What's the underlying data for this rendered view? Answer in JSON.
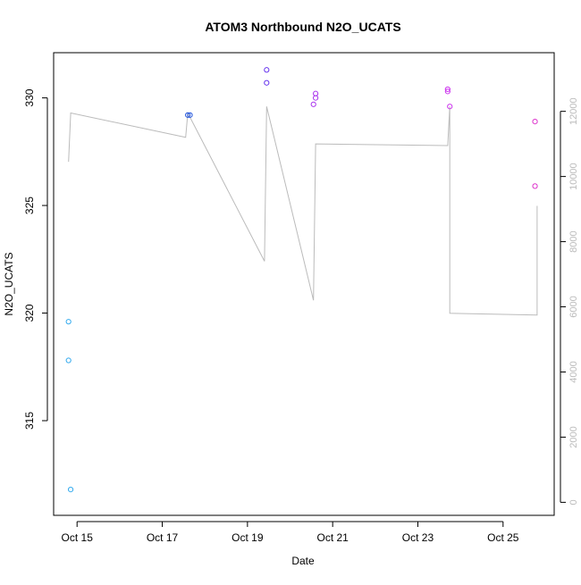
{
  "chart_data": {
    "type": "scatter",
    "title": "ATOM3 Northbound N2O_UCATS",
    "xlabel": "Date",
    "ylabel": "N2O_UCATS",
    "x_ticks": [
      "Oct 15",
      "Oct 17",
      "Oct 19",
      "Oct 21",
      "Oct 23",
      "Oct 25"
    ],
    "x_tick_values": [
      15,
      17,
      19,
      21,
      23,
      25
    ],
    "xlim": [
      14.45,
      26.2
    ],
    "y_ticks": [
      "315",
      "320",
      "325",
      "330"
    ],
    "y_tick_values": [
      315,
      320,
      325,
      330
    ],
    "ylim": [
      310.6,
      332.1
    ],
    "y2_ticks": [
      "0",
      "2000",
      "4000",
      "6000",
      "8000",
      "10000",
      "12000"
    ],
    "y2_tick_values": [
      0,
      2000,
      4000,
      6000,
      8000,
      10000,
      12000
    ],
    "y2lim": [
      -400,
      13800
    ],
    "grid": false,
    "series": [
      {
        "values": [
          {
            "x": 14.8,
            "y": 319.6,
            "color": "#33aaee"
          },
          {
            "x": 14.8,
            "y": 317.8,
            "color": "#33aaee"
          },
          {
            "x": 14.85,
            "y": 311.8,
            "color": "#33aaee"
          },
          {
            "x": 17.6,
            "y": 329.2,
            "color": "#2255dd"
          },
          {
            "x": 17.65,
            "y": 329.2,
            "color": "#2255dd"
          },
          {
            "x": 19.45,
            "y": 331.3,
            "color": "#6633ee"
          },
          {
            "x": 19.45,
            "y": 330.7,
            "color": "#6633ee"
          },
          {
            "x": 20.6,
            "y": 330.2,
            "color": "#aa33ee"
          },
          {
            "x": 20.6,
            "y": 330.0,
            "color": "#aa33ee"
          },
          {
            "x": 20.55,
            "y": 329.7,
            "color": "#aa33ee"
          },
          {
            "x": 23.7,
            "y": 330.4,
            "color": "#cc33ee"
          },
          {
            "x": 23.7,
            "y": 330.3,
            "color": "#cc33ee"
          },
          {
            "x": 23.75,
            "y": 329.6,
            "color": "#cc33ee"
          },
          {
            "x": 25.75,
            "y": 328.9,
            "color": "#dd33cc"
          },
          {
            "x": 25.75,
            "y": 325.9,
            "color": "#dd33cc"
          }
        ]
      },
      {
        "axis": "right",
        "color": "#bbbbbb",
        "values": [
          {
            "x": 14.8,
            "y": 10450
          },
          {
            "x": 14.85,
            "y": 11950
          },
          {
            "x": 17.55,
            "y": 11200
          },
          {
            "x": 17.6,
            "y": 11950
          },
          {
            "x": 19.4,
            "y": 7400
          },
          {
            "x": 19.45,
            "y": 12150
          },
          {
            "x": 20.55,
            "y": 6200
          },
          {
            "x": 20.6,
            "y": 11000
          },
          {
            "x": 23.7,
            "y": 10950
          },
          {
            "x": 23.75,
            "y": 12150
          },
          {
            "x": 23.75,
            "y": 5800
          },
          {
            "x": 25.8,
            "y": 5750
          },
          {
            "x": 25.8,
            "y": 9100
          }
        ]
      }
    ]
  }
}
